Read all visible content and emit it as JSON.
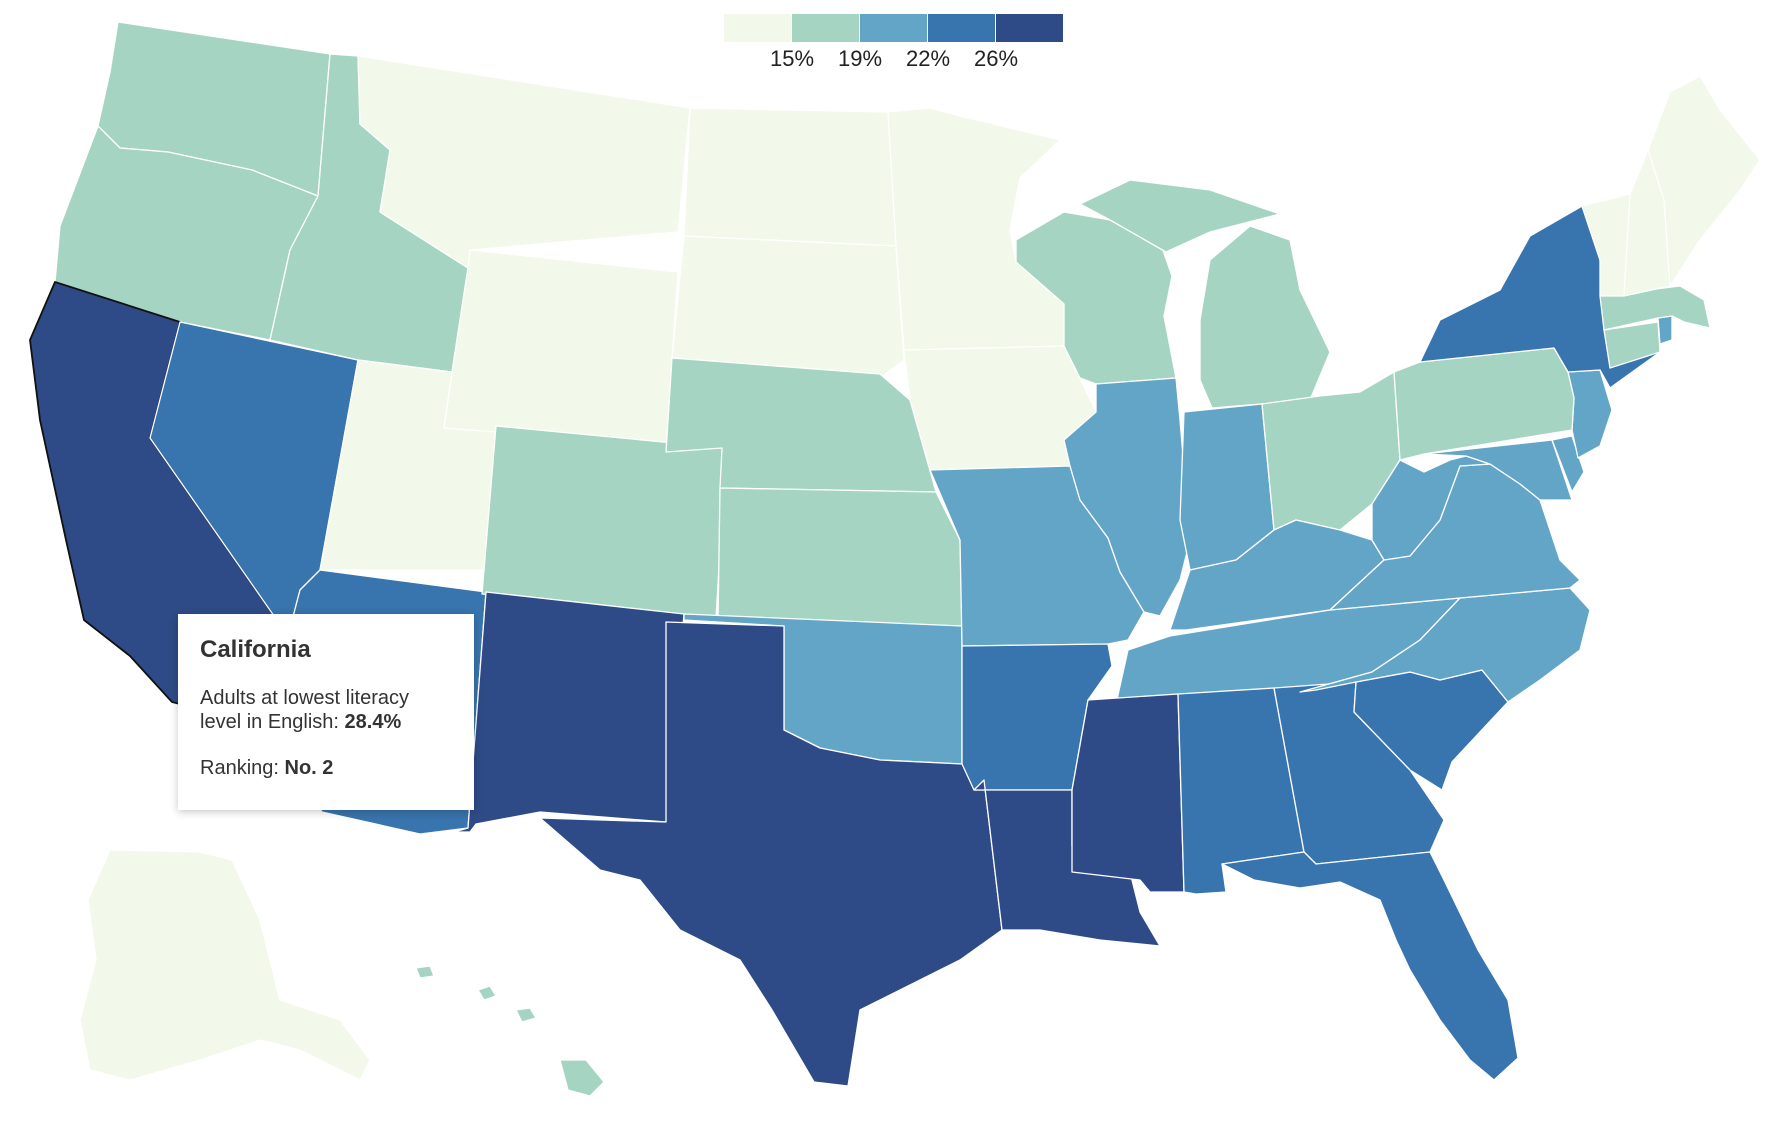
{
  "legend": {
    "colors": [
      "#f2f8ea",
      "#a5d4c3",
      "#63a5c7",
      "#3874ad",
      "#2e4b87"
    ],
    "labels": [
      "15%",
      "19%",
      "22%",
      "26%"
    ]
  },
  "tooltip": {
    "state": "California",
    "metric_label": "Adults at lowest literacy level in English: ",
    "metric_value": "28.4%",
    "rank_label": "Ranking: ",
    "rank_value": "No. 2"
  },
  "map": {
    "selected_state": "California",
    "states": [
      {
        "name": "Washington",
        "level": 1
      },
      {
        "name": "Oregon",
        "level": 1
      },
      {
        "name": "California",
        "level": 4
      },
      {
        "name": "Nevada",
        "level": 3
      },
      {
        "name": "Idaho",
        "level": 1
      },
      {
        "name": "Montana",
        "level": 0
      },
      {
        "name": "Wyoming",
        "level": 0
      },
      {
        "name": "Utah",
        "level": 0
      },
      {
        "name": "Arizona",
        "level": 3
      },
      {
        "name": "Colorado",
        "level": 1
      },
      {
        "name": "New Mexico",
        "level": 4
      },
      {
        "name": "North Dakota",
        "level": 0
      },
      {
        "name": "South Dakota",
        "level": 0
      },
      {
        "name": "Nebraska",
        "level": 1
      },
      {
        "name": "Kansas",
        "level": 1
      },
      {
        "name": "Oklahoma",
        "level": 2
      },
      {
        "name": "Texas",
        "level": 4
      },
      {
        "name": "Minnesota",
        "level": 0
      },
      {
        "name": "Iowa",
        "level": 0
      },
      {
        "name": "Missouri",
        "level": 2
      },
      {
        "name": "Arkansas",
        "level": 3
      },
      {
        "name": "Louisiana",
        "level": 4
      },
      {
        "name": "Wisconsin",
        "level": 1
      },
      {
        "name": "Illinois",
        "level": 2
      },
      {
        "name": "Michigan",
        "level": 1
      },
      {
        "name": "Indiana",
        "level": 2
      },
      {
        "name": "Ohio",
        "level": 1
      },
      {
        "name": "Kentucky",
        "level": 2
      },
      {
        "name": "Tennessee",
        "level": 2
      },
      {
        "name": "Mississippi",
        "level": 4
      },
      {
        "name": "Alabama",
        "level": 3
      },
      {
        "name": "Georgia",
        "level": 3
      },
      {
        "name": "Florida",
        "level": 3
      },
      {
        "name": "South Carolina",
        "level": 3
      },
      {
        "name": "North Carolina",
        "level": 2
      },
      {
        "name": "Virginia",
        "level": 2
      },
      {
        "name": "West Virginia",
        "level": 2
      },
      {
        "name": "Maryland",
        "level": 2
      },
      {
        "name": "Delaware",
        "level": 2
      },
      {
        "name": "New Jersey",
        "level": 2
      },
      {
        "name": "Pennsylvania",
        "level": 1
      },
      {
        "name": "New York",
        "level": 3
      },
      {
        "name": "Connecticut",
        "level": 1
      },
      {
        "name": "Rhode Island",
        "level": 2
      },
      {
        "name": "Massachusetts",
        "level": 1
      },
      {
        "name": "Vermont",
        "level": 0
      },
      {
        "name": "New Hampshire",
        "level": 0
      },
      {
        "name": "Maine",
        "level": 0
      },
      {
        "name": "Alaska",
        "level": 0
      },
      {
        "name": "Hawaii",
        "level": 1
      }
    ]
  }
}
